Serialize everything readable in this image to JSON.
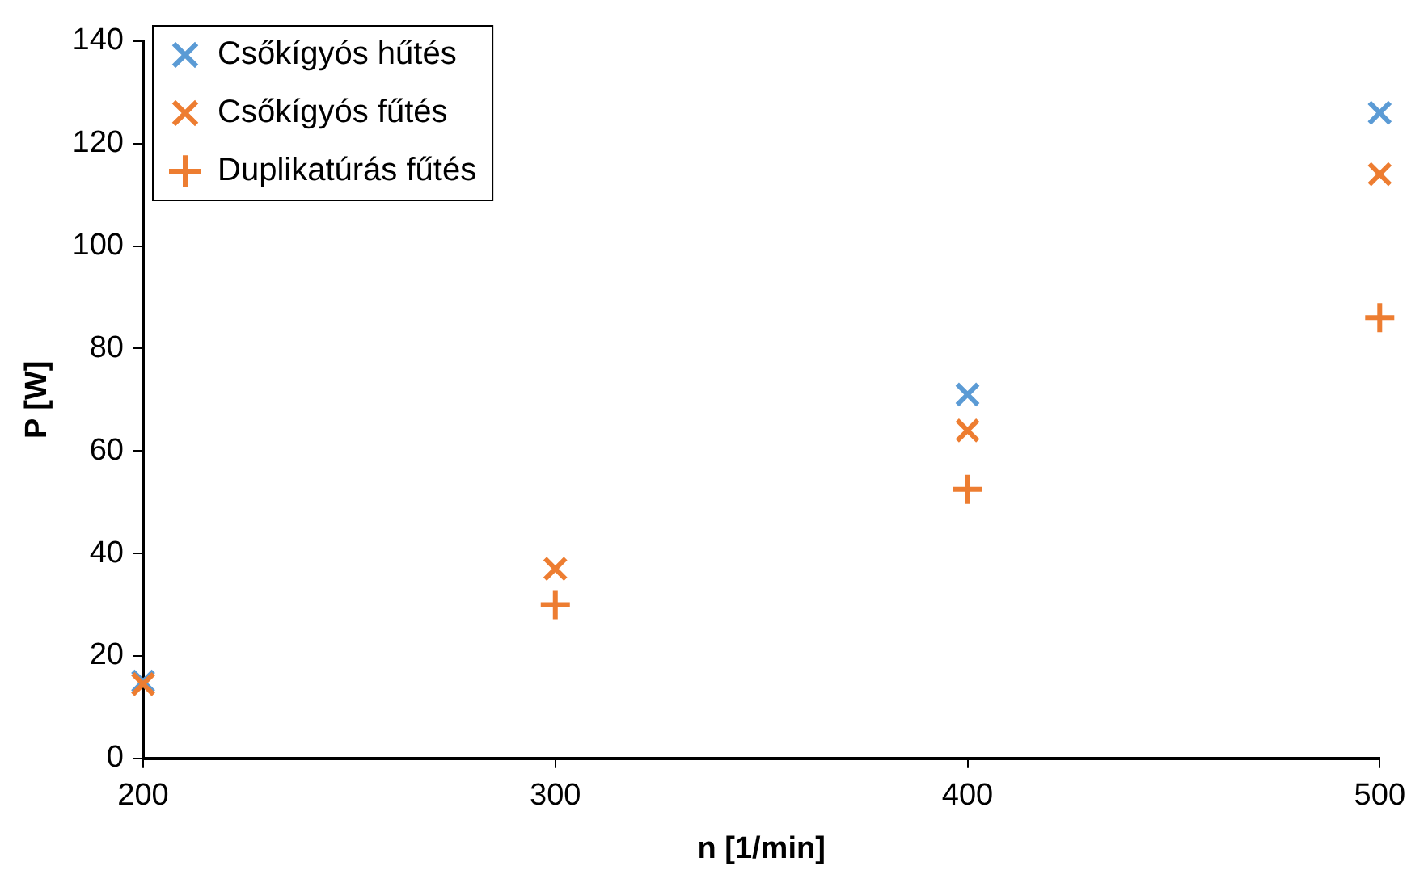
{
  "chart_data": {
    "type": "scatter",
    "xlabel": "n [1/min]",
    "ylabel": "P [W]",
    "x": [
      200,
      300,
      400,
      500
    ],
    "series": [
      {
        "name": "Csőkígyós hűtés",
        "color": "#5b9bd5",
        "marker": "cross",
        "values": [
          15,
          null,
          71,
          126
        ]
      },
      {
        "name": "Csőkígyós fűtés",
        "color": "#ed7d31",
        "marker": "cross",
        "values": [
          14.5,
          37,
          64,
          114
        ]
      },
      {
        "name": "Duplikatúrás fűtés",
        "color": "#ed7d31",
        "marker": "plus",
        "values": [
          null,
          30,
          52.5,
          86
        ]
      }
    ],
    "xlim": [
      200,
      500
    ],
    "xticks": [
      200,
      300,
      400,
      500
    ],
    "ylim": [
      0,
      140
    ],
    "yticks": [
      0,
      20,
      40,
      60,
      80,
      100,
      120,
      140
    ],
    "grid": false,
    "legend": "top left"
  }
}
